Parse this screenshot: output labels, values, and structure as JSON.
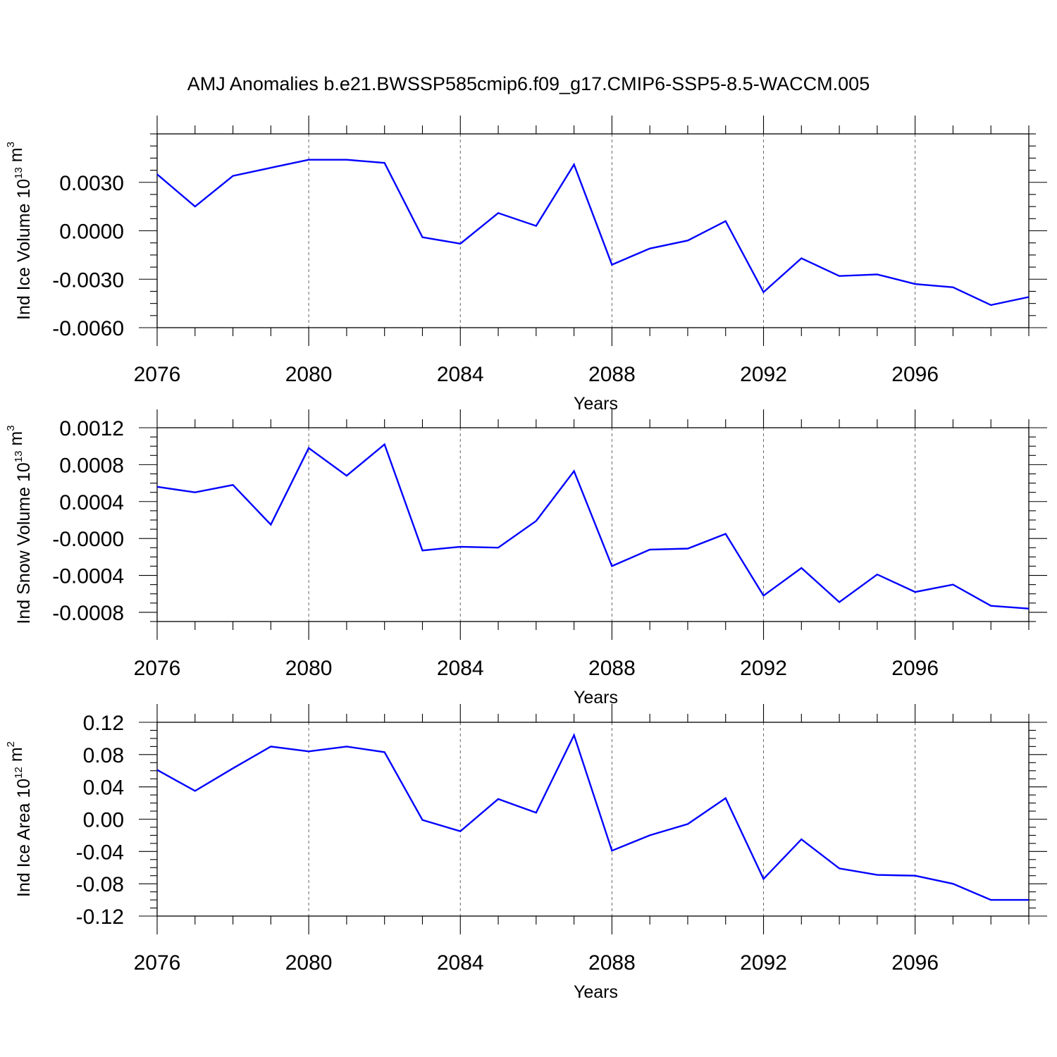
{
  "figure": {
    "title": "AMJ Anomalies b.e21.BWSSP585cmip6.f09_g17.CMIP6-SSP5-8.5-WACCM.005"
  },
  "colors": {
    "line": "#0000ff",
    "axes": "#000000",
    "grid": "#666666"
  },
  "chart_data": [
    {
      "type": "line",
      "id": "ice-volume",
      "xlabel": "Years",
      "ylabel": {
        "main": "Ind Ice Volume 10",
        "exp": "13",
        "unit": " m",
        "unit_exp": "3"
      },
      "xlim": [
        2076,
        2099
      ],
      "ylim": [
        -0.006,
        0.006
      ],
      "xticks": [
        2076,
        2080,
        2084,
        2088,
        2092,
        2096
      ],
      "xtick_labels": [
        "2076",
        "2080",
        "2084",
        "2088",
        "2092",
        "2096"
      ],
      "yticks": [
        -0.006,
        -0.003,
        0.0,
        0.003
      ],
      "ytick_labels": [
        "-0.0060",
        "-0.0030",
        "0.0000",
        "0.0030"
      ],
      "ytick_minor_step": 0.00075,
      "grid": "vertical dashed at major x ticks",
      "x": [
        2076,
        2077,
        2078,
        2079,
        2080,
        2081,
        2082,
        2083,
        2084,
        2085,
        2086,
        2087,
        2088,
        2089,
        2090,
        2091,
        2092,
        2093,
        2094,
        2095,
        2096,
        2097,
        2098,
        2099
      ],
      "values": [
        0.0035,
        0.0015,
        0.0034,
        0.0039,
        0.0044,
        0.0044,
        0.0042,
        -0.0004,
        -0.0008,
        0.0011,
        0.0003,
        0.0041,
        -0.0021,
        -0.0011,
        -0.0006,
        0.0006,
        -0.0038,
        -0.0017,
        -0.0028,
        -0.0027,
        -0.0033,
        -0.0035,
        -0.0046,
        -0.0041
      ]
    },
    {
      "type": "line",
      "id": "snow-volume",
      "xlabel": "Years",
      "ylabel": {
        "main": "Ind Snow Volume 10",
        "exp": "13",
        "unit": " m",
        "unit_exp": "3"
      },
      "xlim": [
        2076,
        2099
      ],
      "ylim": [
        -0.0009,
        0.0012
      ],
      "xticks": [
        2076,
        2080,
        2084,
        2088,
        2092,
        2096
      ],
      "xtick_labels": [
        "2076",
        "2080",
        "2084",
        "2088",
        "2092",
        "2096"
      ],
      "yticks": [
        -0.0008,
        -0.0004,
        0.0,
        0.0004,
        0.0008,
        0.0012
      ],
      "ytick_labels": [
        "-0.0008",
        "-0.0004",
        "-0.0000",
        "0.0004",
        "0.0008",
        "0.0012"
      ],
      "ytick_minor_step": 0.0001,
      "grid": "vertical dashed at major x ticks",
      "x": [
        2076,
        2077,
        2078,
        2079,
        2080,
        2081,
        2082,
        2083,
        2084,
        2085,
        2086,
        2087,
        2088,
        2089,
        2090,
        2091,
        2092,
        2093,
        2094,
        2095,
        2096,
        2097,
        2098,
        2099
      ],
      "values": [
        0.00056,
        0.0005,
        0.00058,
        0.00015,
        0.00098,
        0.00068,
        0.00102,
        -0.00013,
        -9e-05,
        -0.0001,
        0.00019,
        0.00073,
        -0.0003,
        -0.00012,
        -0.00011,
        5e-05,
        -0.00062,
        -0.00032,
        -0.00069,
        -0.00039,
        -0.00058,
        -0.0005,
        -0.00073,
        -0.00076
      ]
    },
    {
      "type": "line",
      "id": "ice-area",
      "xlabel": "Years",
      "ylabel": {
        "main": "Ind Ice Area 10",
        "exp": "12",
        "unit": " m",
        "unit_exp": "2"
      },
      "xlim": [
        2076,
        2099
      ],
      "ylim": [
        -0.12,
        0.12
      ],
      "xticks": [
        2076,
        2080,
        2084,
        2088,
        2092,
        2096
      ],
      "xtick_labels": [
        "2076",
        "2080",
        "2084",
        "2088",
        "2092",
        "2096"
      ],
      "yticks": [
        -0.12,
        -0.08,
        -0.04,
        0.0,
        0.04,
        0.08,
        0.12
      ],
      "ytick_labels": [
        "-0.12",
        "-0.08",
        "-0.04",
        "0.00",
        "0.04",
        "0.08",
        "0.12"
      ],
      "ytick_minor_step": 0.01,
      "grid": "vertical dashed at major x ticks",
      "x": [
        2076,
        2077,
        2078,
        2079,
        2080,
        2081,
        2082,
        2083,
        2084,
        2085,
        2086,
        2087,
        2088,
        2089,
        2090,
        2091,
        2092,
        2093,
        2094,
        2095,
        2096,
        2097,
        2098,
        2099
      ],
      "values": [
        0.061,
        0.035,
        0.063,
        0.09,
        0.084,
        0.09,
        0.083,
        -0.001,
        -0.015,
        0.025,
        0.008,
        0.104,
        -0.039,
        -0.02,
        -0.006,
        0.026,
        -0.074,
        -0.025,
        -0.061,
        -0.069,
        -0.07,
        -0.08,
        -0.1,
        -0.1
      ]
    }
  ]
}
